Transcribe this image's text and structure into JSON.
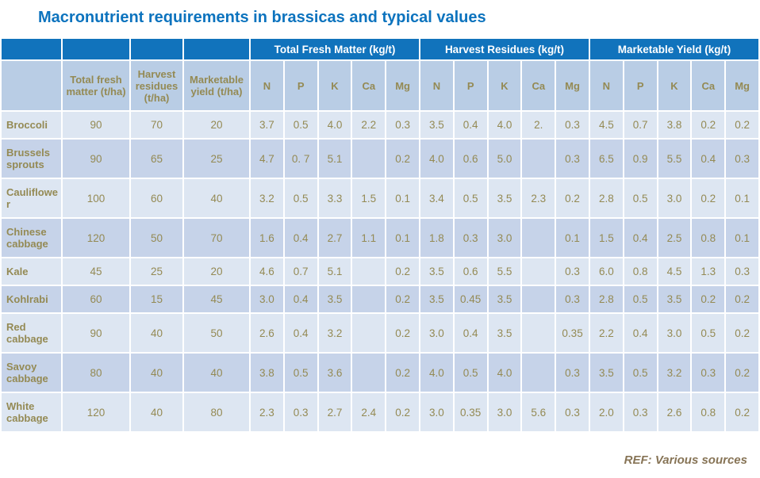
{
  "title": "Macronutrient requirements in brassicas and typical values",
  "footer": {
    "ref": "REF: Various sources"
  },
  "colors": {
    "title_blue": "#0c73be",
    "header_blue": "#1173bc",
    "subheader_bg": "#b9cde5",
    "band_light": "#dde6f2",
    "band_dark": "#c6d3e9",
    "text_brown": "#948a54",
    "ref_brown": "#877456"
  },
  "table": {
    "group_headers": [
      "Total Fresh Matter (kg/t)",
      "Harvest Residues (kg/t)",
      "Marketable Yield (kg/t)"
    ],
    "stat_headers": [
      "Total fresh matter (t/ha)",
      "Harvest residues (t/ha)",
      "Marketable yield (t/ha)"
    ],
    "nutrient_headers": [
      "N",
      "P",
      "K",
      "Ca",
      "Mg"
    ],
    "rows": [
      {
        "label": "Broccoli",
        "values": [
          "90",
          "70",
          "20",
          "3.7",
          "0.5",
          "4.0",
          "2.2",
          "0.3",
          "3.5",
          "0.4",
          "4.0",
          "2.",
          "0.3",
          "4.5",
          "0.7",
          "3.8",
          "0.2",
          "0.2"
        ]
      },
      {
        "label": "Brussels sprouts",
        "values": [
          "90",
          "65",
          "25",
          "4.7",
          "0. 7",
          "5.1",
          "",
          "0.2",
          "4.0",
          "0.6",
          "5.0",
          "",
          "0.3",
          "6.5",
          "0.9",
          "5.5",
          "0.4",
          "0.3"
        ]
      },
      {
        "label": "Cauliflower",
        "values": [
          "100",
          "60",
          "40",
          "3.2",
          "0.5",
          "3.3",
          "1.5",
          "0.1",
          "3.4",
          "0.5",
          "3.5",
          "2.3",
          "0.2",
          "2.8",
          "0.5",
          "3.0",
          "0.2",
          "0.1"
        ]
      },
      {
        "label": "Chinese cabbage",
        "values": [
          "120",
          "50",
          "70",
          "1.6",
          "0.4",
          "2.7",
          "1.1",
          "0.1",
          "1.8",
          "0.3",
          "3.0",
          "",
          "0.1",
          "1.5",
          "0.4",
          "2.5",
          "0.8",
          "0.1"
        ]
      },
      {
        "label": "Kale",
        "values": [
          "45",
          "25",
          "20",
          "4.6",
          "0.7",
          "5.1",
          "",
          "0.2",
          "3.5",
          "0.6",
          "5.5",
          "",
          "0.3",
          "6.0",
          "0.8",
          "4.5",
          "1.3",
          "0.3"
        ]
      },
      {
        "label": "Kohlrabi",
        "values": [
          "60",
          "15",
          "45",
          "3.0",
          "0.4",
          "3.5",
          "",
          "0.2",
          "3.5",
          "0.45",
          "3.5",
          "",
          "0.3",
          "2.8",
          "0.5",
          "3.5",
          "0.2",
          "0.2"
        ]
      },
      {
        "label": "Red cabbage",
        "values": [
          "90",
          "40",
          "50",
          "2.6",
          "0.4",
          "3.2",
          "",
          "0.2",
          "3.0",
          "0.4",
          "3.5",
          "",
          "0.35",
          "2.2",
          "0.4",
          "3.0",
          "0.5",
          "0.2"
        ]
      },
      {
        "label": "Savoy cabbage",
        "values": [
          "80",
          "40",
          "40",
          "3.8",
          "0.5",
          "3.6",
          "",
          "0.2",
          "4.0",
          "0.5",
          "4.0",
          "",
          "0.3",
          "3.5",
          "0.5",
          "3.2",
          "0.3",
          "0.2"
        ]
      },
      {
        "label": "White cabbage",
        "values": [
          "120",
          "40",
          "80",
          "2.3",
          "0.3",
          "2.7",
          "2.4",
          "0.2",
          "3.0",
          "0.35",
          "3.0",
          "5.6",
          "0.3",
          "2.0",
          "0.3",
          "2.6",
          "0.8",
          "0.2"
        ]
      }
    ]
  }
}
